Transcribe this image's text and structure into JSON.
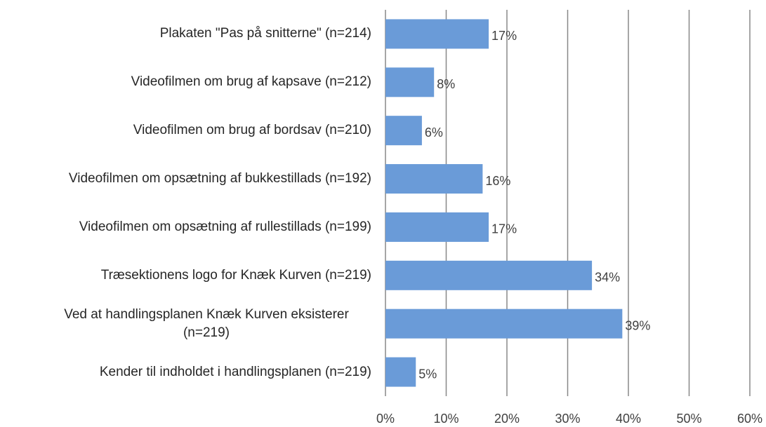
{
  "chart_data": {
    "type": "bar",
    "orientation": "horizontal",
    "categories": [
      "Plakaten \"Pas på snitterne\" (n=214)",
      "Videofilmen om brug af kapsave (n=212)",
      "Videofilmen om brug af bordsav (n=210)",
      "Videofilmen om opsætning af bukkestillads (n=192)",
      "Videofilmen om opsætning af rullestillads (n=199)",
      "Træsektionens logo for Knæk Kurven (n=219)",
      "Ved at handlingsplanen Knæk Kurven eksisterer (n=219)",
      "Kender til indholdet i handlingsplanen (n=219)"
    ],
    "values": [
      17,
      8,
      6,
      16,
      17,
      34,
      39,
      5
    ],
    "value_labels": [
      "17%",
      "8%",
      "6%",
      "16%",
      "17%",
      "34%",
      "39%",
      "5%"
    ],
    "color": "#6a9bd8",
    "xlim": [
      0,
      60
    ],
    "xticks": [
      {
        "value": 0,
        "label": "0%"
      },
      {
        "value": 10,
        "label": "10%"
      },
      {
        "value": 20,
        "label": "20%"
      },
      {
        "value": 30,
        "label": "30%"
      },
      {
        "value": 40,
        "label": "40%"
      },
      {
        "value": 50,
        "label": "50%"
      },
      {
        "value": 60,
        "label": "60%"
      }
    ],
    "grid": true
  }
}
